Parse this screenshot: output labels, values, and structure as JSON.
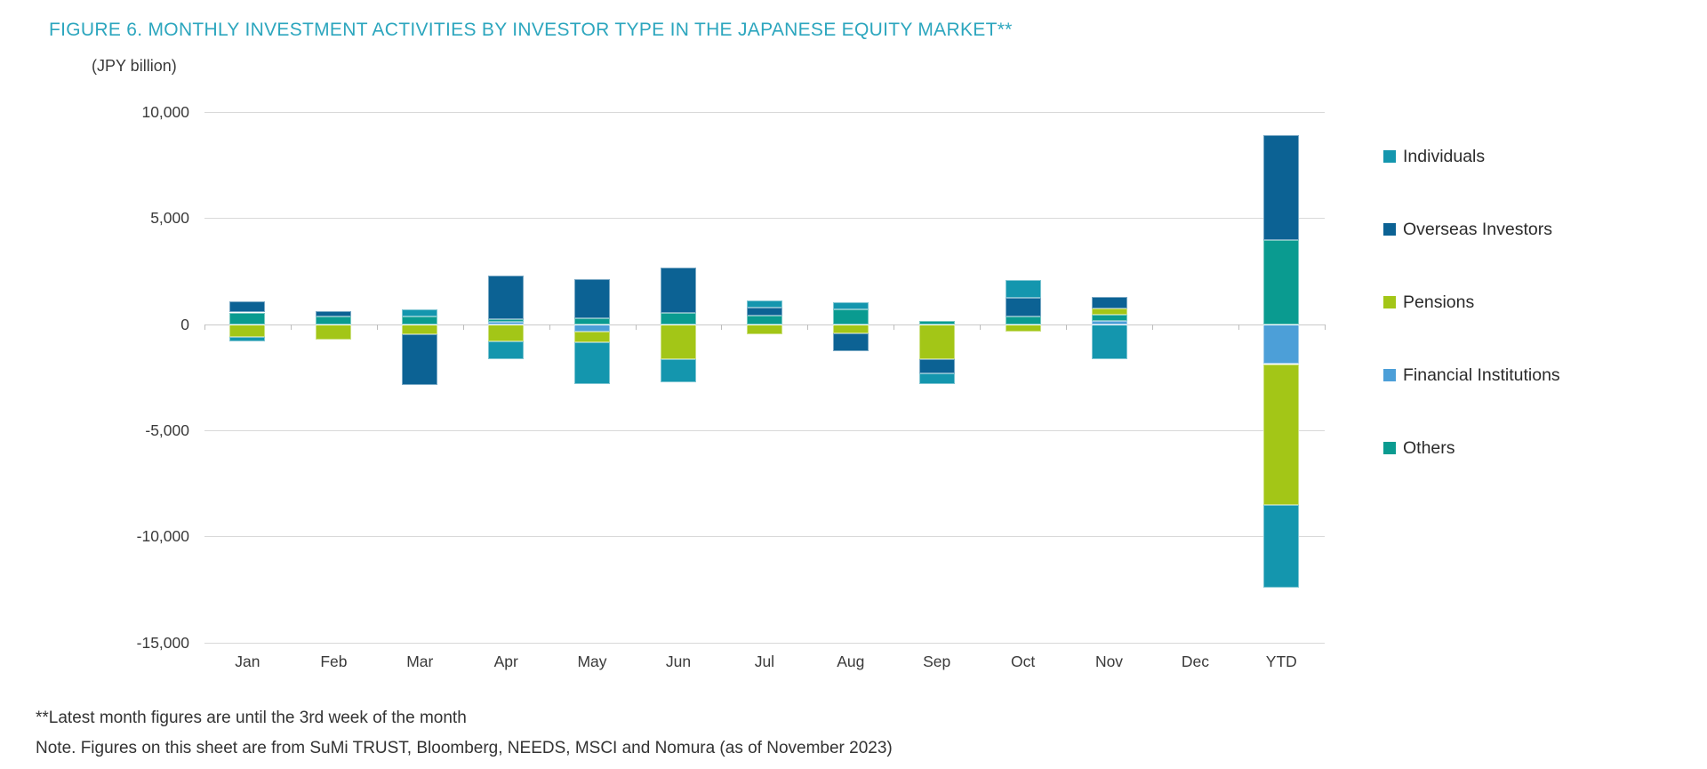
{
  "title": "FIGURE 6. MONTHLY INVESTMENT ACTIVITIES BY INVESTOR TYPE IN THE JAPANESE EQUITY MARKET**",
  "footnotes": {
    "line1": "**Latest month figures are until the 3rd week of the month",
    "line2": "Note. Figures on this sheet are from SuMi TRUST, Bloomberg, NEEDS, MSCI and Nomura (as of November 2023)"
  },
  "colors": {
    "title_accent": "#2CA6BE",
    "text": "#3A3A3A",
    "gridline": "#D9D9D9"
  },
  "chart_data": {
    "type": "bar",
    "subtype": "stacked-diverging-column",
    "title": "FIGURE 6. MONTHLY INVESTMENT ACTIVITIES BY INVESTOR TYPE IN THE JAPANESE EQUITY MARKET**",
    "ylabel": "(JPY billion)",
    "xlabel": "",
    "grid": "horizontal",
    "legend_position": "right",
    "ylim": [
      -15000,
      10000
    ],
    "yticks": [
      {
        "value": 10000,
        "label": "10,000"
      },
      {
        "value": 5000,
        "label": "5,000"
      },
      {
        "value": 0,
        "label": "0"
      },
      {
        "value": -5000,
        "label": "-5,000"
      },
      {
        "value": -10000,
        "label": "-10,000"
      },
      {
        "value": -15000,
        "label": "-15,000"
      }
    ],
    "categories": [
      "Jan",
      "Feb",
      "Mar",
      "Apr",
      "May",
      "Jun",
      "Jul",
      "Aug",
      "Sep",
      "Oct",
      "Nov",
      "Dec",
      "YTD"
    ],
    "series": [
      {
        "name": "Individuals",
        "color": "#1496AE",
        "values": [
          -220,
          0,
          330,
          -830,
          -1960,
          -1090,
          350,
          350,
          -510,
          830,
          -1670,
          0,
          -3900
        ]
      },
      {
        "name": "Overseas Investors",
        "color": "#0C6294",
        "values": [
          510,
          250,
          -2400,
          2050,
          1850,
          2150,
          370,
          -850,
          -690,
          870,
          570,
          0,
          4980
        ]
      },
      {
        "name": "Pensions",
        "color": "#A3C617",
        "values": [
          -600,
          -750,
          -470,
          -830,
          -500,
          -1640,
          -470,
          -440,
          -1640,
          -340,
          280,
          0,
          -6660
        ]
      },
      {
        "name": "Financial Institutions",
        "color": "#4C9FD8",
        "values": [
          0,
          0,
          0,
          100,
          -370,
          0,
          0,
          0,
          0,
          0,
          150,
          0,
          -1880
        ]
      },
      {
        "name": "Others",
        "color": "#0A9B90",
        "values": [
          550,
          350,
          370,
          150,
          270,
          530,
          410,
          700,
          150,
          360,
          290,
          0,
          3950
        ]
      }
    ],
    "stack_order_from_zero": [
      "Financial Institutions",
      "Others",
      "Pensions",
      "Overseas Investors",
      "Individuals"
    ]
  }
}
